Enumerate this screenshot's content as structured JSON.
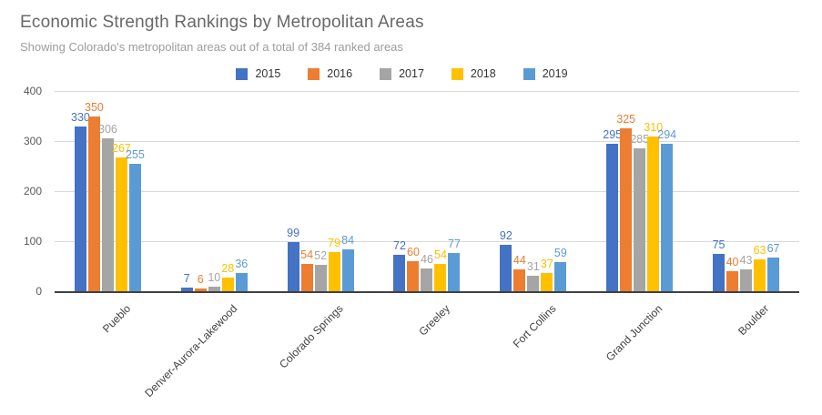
{
  "chart_data": {
    "type": "bar",
    "title": "Economic Strength Rankings by Metropolitan Areas",
    "subtitle": "Showing Colorado's metropolitan areas out of a total of 384 ranked areas",
    "categories": [
      "Pueblo",
      "Denver-Aurora-Lakewood",
      "Colorado Springs",
      "Greeley",
      "Fort Collins",
      "Grand Junction",
      "Boulder"
    ],
    "series": [
      {
        "name": "2015",
        "color": "#4472C4",
        "values": [
          330,
          7,
          99,
          72,
          92,
          295,
          75
        ]
      },
      {
        "name": "2016",
        "color": "#ED7D31",
        "values": [
          350,
          6,
          54,
          60,
          44,
          325,
          40
        ]
      },
      {
        "name": "2017",
        "color": "#A5A5A5",
        "values": [
          306,
          10,
          52,
          46,
          31,
          285,
          43
        ]
      },
      {
        "name": "2018",
        "color": "#FFC000",
        "values": [
          267,
          28,
          79,
          54,
          37,
          310,
          63
        ]
      },
      {
        "name": "2019",
        "color": "#5B9BD5",
        "values": [
          255,
          36,
          84,
          77,
          59,
          294,
          67
        ]
      }
    ],
    "xlabel": "",
    "ylabel": "",
    "ylim": [
      0,
      400
    ],
    "yticks": [
      0,
      100,
      200,
      300,
      400
    ],
    "grid": true,
    "legend_position": "top",
    "axis_color": "#404040",
    "gridline_color": "#d9d9d9",
    "title_color": "#686868",
    "subtitle_color": "#9d9d9d"
  }
}
